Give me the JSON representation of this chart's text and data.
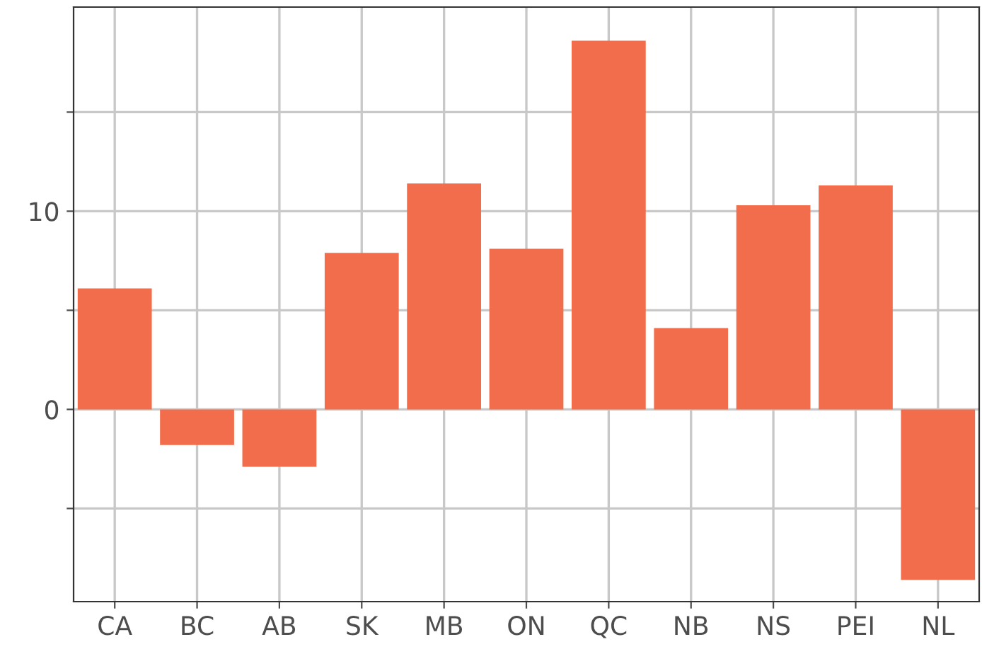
{
  "chart_data": {
    "type": "bar",
    "categories": [
      "CA",
      "BC",
      "AB",
      "SK",
      "MB",
      "ON",
      "QC",
      "NB",
      "NS",
      "PEI",
      "NL"
    ],
    "values": [
      6.1,
      -1.8,
      -2.9,
      7.9,
      11.4,
      8.1,
      18.6,
      4.1,
      10.3,
      11.3,
      -8.6
    ],
    "color": "#f26d4b",
    "ylim": [
      -9.7,
      20.3
    ],
    "yticks": [
      {
        "value": -5,
        "label": null
      },
      0,
      {
        "value": 5,
        "label": null
      },
      10,
      {
        "value": 15,
        "label": null
      }
    ],
    "grid": true
  }
}
